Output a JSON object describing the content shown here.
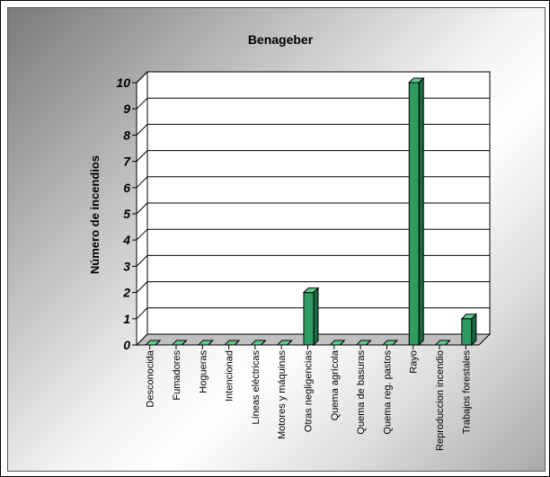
{
  "chart_data": {
    "type": "bar",
    "title": "Benageber",
    "ylabel": "Número de incendios",
    "xlabel": "",
    "categories": [
      "Desconocida",
      "Fumadores",
      "Hogueras",
      "Intencionad",
      "Líneas eléctricas",
      "Motores y máquinas",
      "Otras negligencias",
      "Quema agrícola",
      "Quema de basuras",
      "Quema reg. pastos",
      "Rayo",
      "Reproduccion incendio",
      "Trabajos forestales"
    ],
    "values": [
      0,
      0,
      0,
      0,
      0,
      0,
      2,
      0,
      0,
      0,
      10,
      0,
      1
    ],
    "ylim": [
      0,
      10
    ],
    "yticks": [
      0,
      1,
      2,
      3,
      4,
      5,
      6,
      7,
      8,
      9,
      10
    ],
    "grid": true,
    "legend": "none",
    "colors": {
      "bar": "#2e9b60",
      "bar_top": "#5cc98c",
      "bar_side": "#1b6a3f",
      "grid": "#000000"
    }
  }
}
